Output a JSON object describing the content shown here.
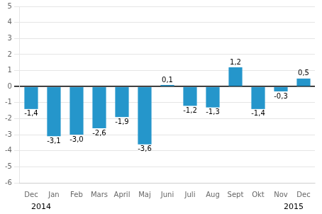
{
  "chart_data": {
    "type": "bar",
    "categories": [
      "Dec",
      "Jan",
      "Feb",
      "Mars",
      "April",
      "Maj",
      "Juni",
      "Juli",
      "Aug",
      "Sept",
      "Okt",
      "Nov",
      "Dec"
    ],
    "values": [
      -1.4,
      -3.1,
      -3.0,
      -2.6,
      -1.9,
      -3.6,
      0.1,
      -1.2,
      -1.3,
      1.2,
      -1.4,
      -0.3,
      0.5
    ],
    "value_labels": [
      "-1,4",
      "-3,1",
      "-3,0",
      "-2,6",
      "-1,9",
      "-3,6",
      "0,1",
      "-1,2",
      "-1,3",
      "1,2",
      "-1,4",
      "-0,3",
      "0,5"
    ],
    "data_labels": true,
    "color": "#2596cb",
    "ylim": [
      -6,
      5
    ],
    "yticks": [
      -6,
      -5,
      -4,
      -3,
      -2,
      -1,
      0,
      1,
      2,
      3,
      4,
      5
    ],
    "grid": true,
    "annotations": [
      "2014",
      "2015"
    ]
  }
}
